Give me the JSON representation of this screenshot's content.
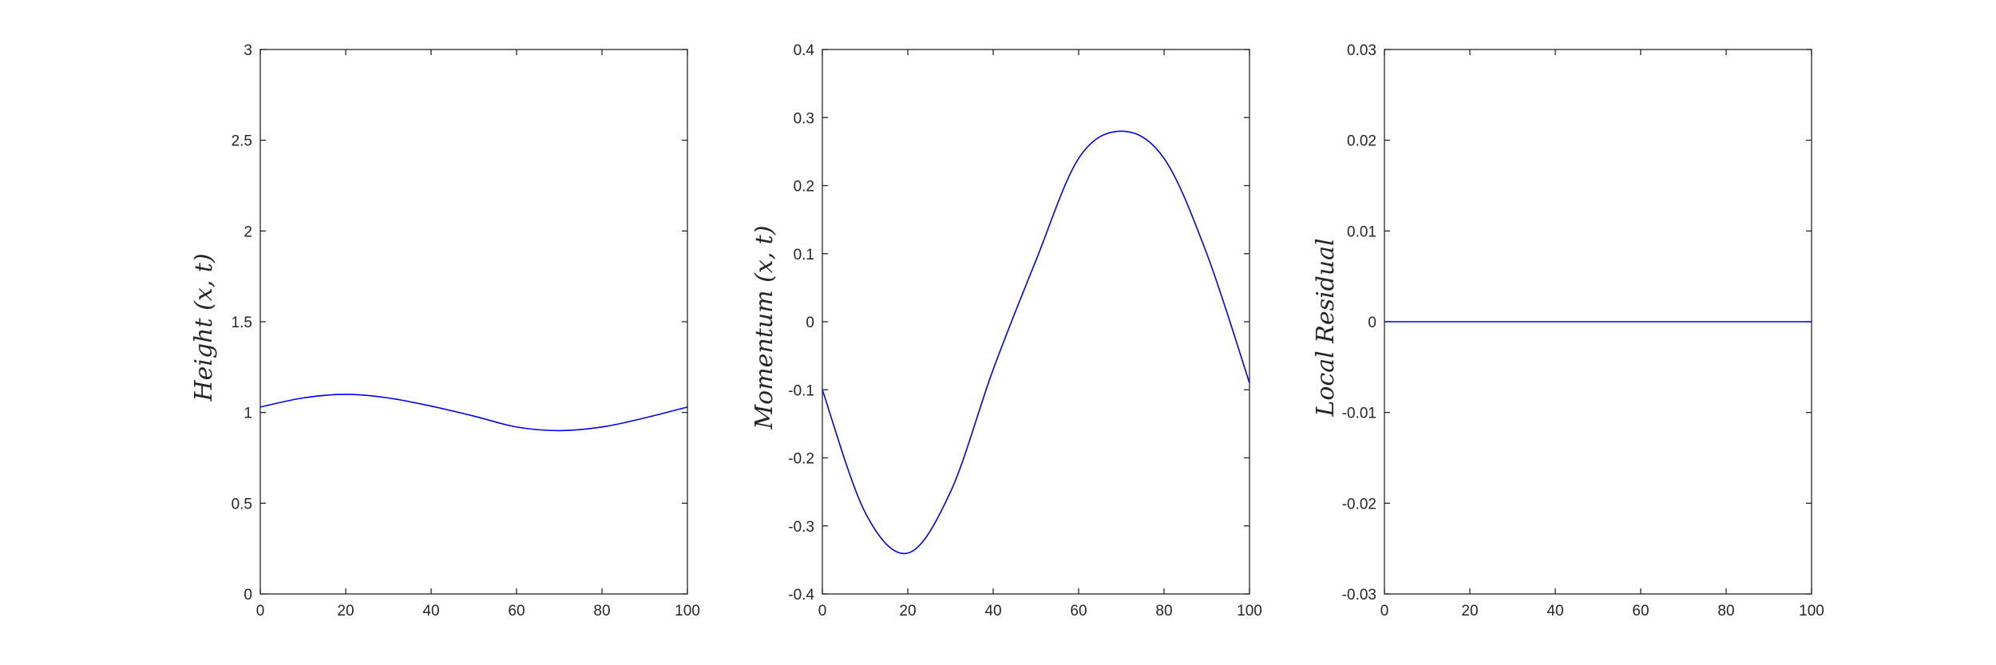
{
  "colors": {
    "background": "#ffffff",
    "axes": "#262626",
    "line": "#0000ff"
  },
  "chart_data": [
    {
      "type": "line",
      "title": "",
      "xlabel": "",
      "ylabel": "Height (x, t)",
      "xlim": [
        0,
        100
      ],
      "ylim": [
        0,
        3
      ],
      "xticks": [
        "0",
        "20",
        "40",
        "60",
        "80",
        "100"
      ],
      "yticks": [
        "0",
        "0.5",
        "1",
        "1.5",
        "2",
        "2.5",
        "3"
      ],
      "grid": false,
      "box": true,
      "series": [
        {
          "color": "#0000ff",
          "x": [
            0,
            10,
            20,
            30,
            40,
            50,
            60,
            70,
            80,
            90,
            100
          ],
          "y": [
            1.03,
            1.08,
            1.1,
            1.08,
            1.035,
            0.98,
            0.92,
            0.9,
            0.92,
            0.97,
            1.03
          ]
        }
      ]
    },
    {
      "type": "line",
      "title": "",
      "xlabel": "",
      "ylabel": "Momentum (x, t)",
      "xlim": [
        0,
        100
      ],
      "ylim": [
        -0.4,
        0.4
      ],
      "xticks": [
        "0",
        "20",
        "40",
        "60",
        "80",
        "100"
      ],
      "yticks": [
        "-0.4",
        "-0.3",
        "-0.2",
        "-0.1",
        "0",
        "0.1",
        "0.2",
        "0.3",
        "0.4"
      ],
      "grid": false,
      "box": true,
      "series": [
        {
          "color": "#0000ff",
          "x": [
            0,
            10,
            20,
            30,
            40,
            50,
            60,
            70,
            80,
            90,
            100
          ],
          "y": [
            -0.1,
            -0.28,
            -0.34,
            -0.25,
            -0.07,
            0.09,
            0.24,
            0.28,
            0.24,
            0.1,
            -0.09
          ]
        }
      ]
    },
    {
      "type": "line",
      "title": "",
      "xlabel": "",
      "ylabel": "Local Residual",
      "xlim": [
        0,
        100
      ],
      "ylim": [
        -0.03,
        0.03
      ],
      "xticks": [
        "0",
        "20",
        "40",
        "60",
        "80",
        "100"
      ],
      "yticks": [
        "-0.03",
        "-0.02",
        "-0.01",
        "0",
        "0.01",
        "0.02",
        "0.03"
      ],
      "grid": false,
      "box": true,
      "series": [
        {
          "color": "#0000ff",
          "x": [
            0,
            100
          ],
          "y": [
            0,
            0
          ]
        }
      ]
    }
  ]
}
